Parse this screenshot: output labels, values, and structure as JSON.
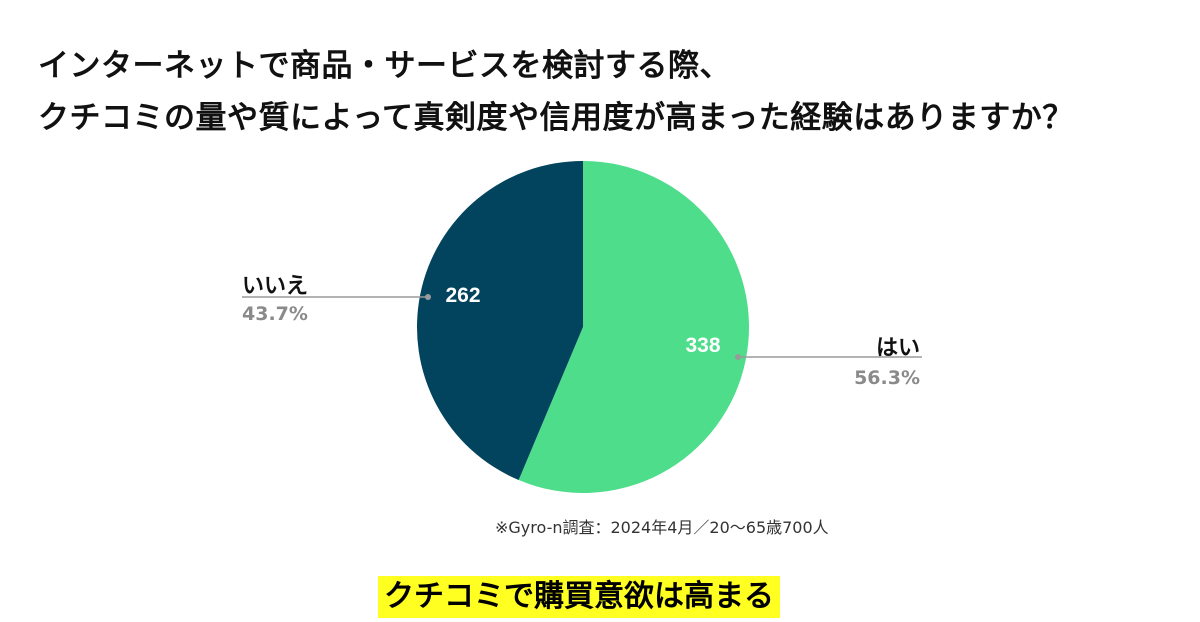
{
  "title_lines": [
    "インターネットで商品・サービスを検討する際、",
    "クチコミの量や質によって真剣度や信用度が高まった経験はありますか？"
  ],
  "chart_data": {
    "type": "pie",
    "slices": [
      {
        "name": "はい",
        "value": 338,
        "percent_label": "56.3%",
        "color": "#4ddd8b"
      },
      {
        "name": "いいえ",
        "value": 262,
        "percent_label": "43.7%",
        "color": "#02445e"
      }
    ],
    "start": "12 o'clock",
    "direction": "clockwise",
    "legend": "none",
    "leader_line_color": "#9a9a9a"
  },
  "source_note": "※Gyro-n調査：2024年4月／20〜65歳700人",
  "banner_text": "クチコミで購買意欲は高まる",
  "colors": {
    "banner_bg": "#ffff22",
    "text": "#111111",
    "percent_text": "#8a8a8a"
  }
}
